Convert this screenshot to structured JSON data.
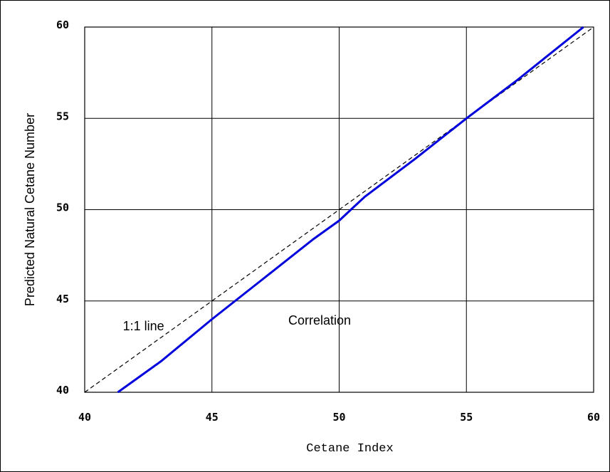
{
  "chart_data": {
    "type": "line",
    "xlabel": "Cetane Index",
    "ylabel": "Predicted Natural Cetane Number",
    "xlim": [
      40,
      60
    ],
    "ylim": [
      40,
      60
    ],
    "x_ticks": [
      "40",
      "45",
      "50",
      "55",
      "60"
    ],
    "y_ticks": [
      "40",
      "45",
      "50",
      "55",
      "60"
    ],
    "grid": true,
    "series": [
      {
        "name": "Correlation",
        "color": "#0000dd",
        "style": "solid",
        "x": [
          41.3,
          43,
          45,
          47,
          49,
          50,
          51,
          53,
          55,
          57,
          59.6
        ],
        "y": [
          40,
          41.7,
          44,
          46.2,
          48.4,
          49.4,
          50.7,
          52.8,
          55,
          57.1,
          60
        ]
      },
      {
        "name": "1:1 line",
        "color": "#000000",
        "style": "dashed",
        "x": [
          40,
          60
        ],
        "y": [
          40,
          60
        ]
      }
    ],
    "annotations": [
      {
        "text": "1:1 line",
        "x": 41.5,
        "y": 43.4
      },
      {
        "text": "Correlation",
        "x": 48,
        "y": 43.7
      }
    ]
  }
}
